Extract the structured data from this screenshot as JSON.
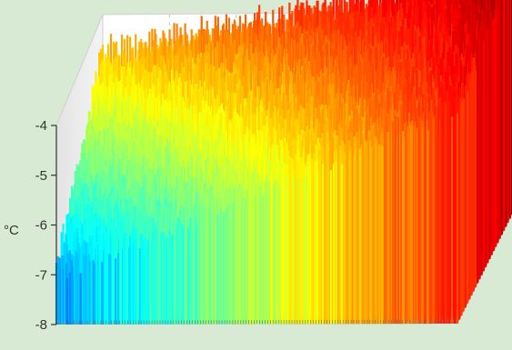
{
  "chart_data": {
    "type": "surface",
    "ylabel": "°C",
    "yticks": [
      "-4",
      "-5",
      "-6",
      "-7",
      "-8"
    ],
    "ylim": [
      -8,
      -3
    ],
    "trend": {
      "near_edge_start": -6.9,
      "near_edge_end": -3.6,
      "far_edge_start": -4.6,
      "far_edge_end": -3.0
    },
    "colormap": "jet",
    "grid": true
  }
}
